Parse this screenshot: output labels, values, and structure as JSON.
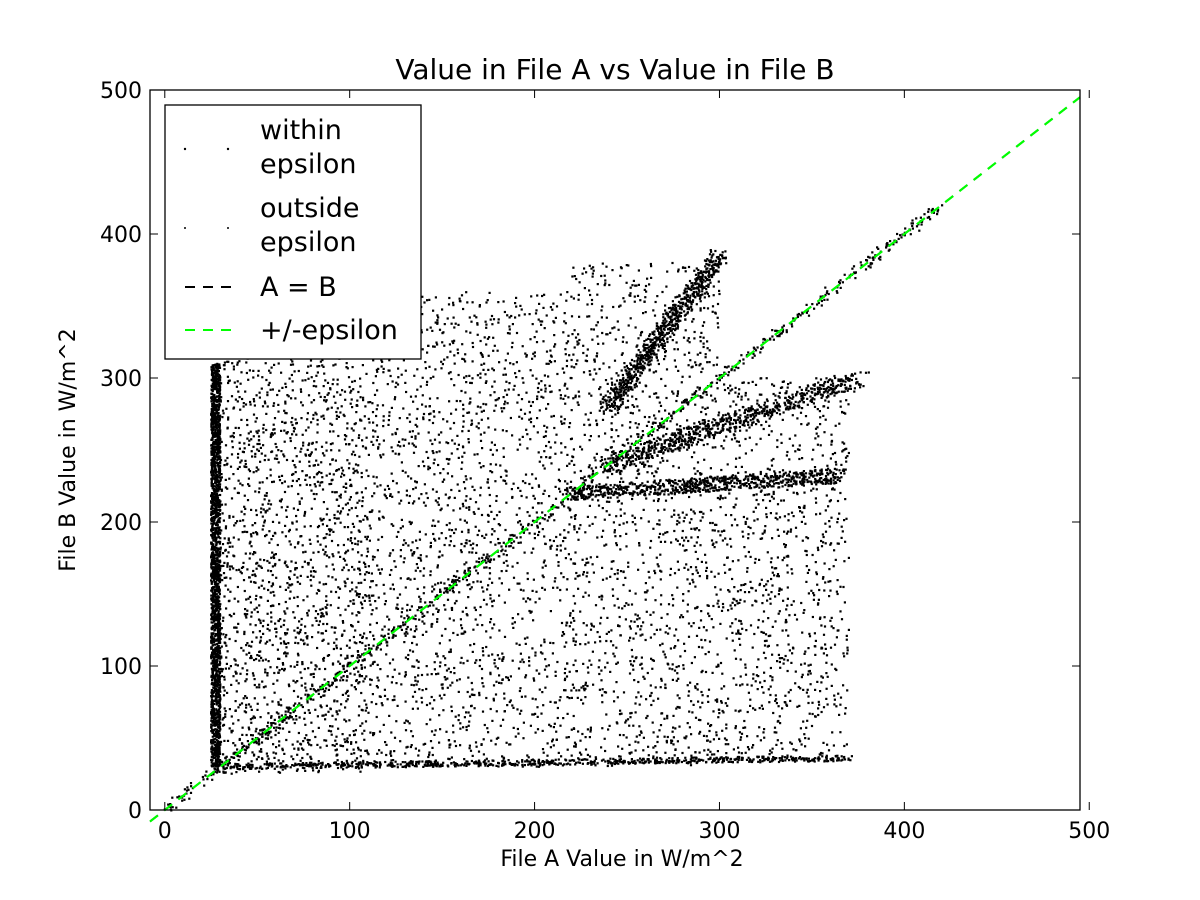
{
  "chart_data": {
    "type": "scatter",
    "title": "Value in File A vs Value in File B",
    "xlabel": "File A Value in W/m^2",
    "ylabel": "File B Value in W/m^2",
    "xlim": [
      -8,
      495
    ],
    "ylim": [
      0,
      500
    ],
    "xticks": [
      0,
      100,
      200,
      300,
      400,
      500
    ],
    "yticks": [
      0,
      100,
      200,
      300,
      400,
      500
    ],
    "xtick_labels": [
      "0",
      "100",
      "200",
      "300",
      "400",
      "500"
    ],
    "ytick_labels": [
      "0",
      "100",
      "200",
      "300",
      "400",
      "500"
    ],
    "grid": false,
    "legend_position": "upper-left",
    "legend": [
      {
        "label_lines": [
          "within",
          "epsilon"
        ],
        "marker": "dot",
        "color": "#000000"
      },
      {
        "label_lines": [
          "outside",
          "epsilon"
        ],
        "marker": "dot",
        "color": "#000000"
      },
      {
        "label_lines": [
          "A = B"
        ],
        "marker": "dashed-line",
        "color": "#000000"
      },
      {
        "label_lines": [
          "+/-epsilon"
        ],
        "marker": "dashed-line",
        "color": "#00ff00"
      }
    ],
    "series": [
      {
        "name": "within epsilon",
        "kind": "points",
        "color": "#000000",
        "clusters": [
          {
            "x": [
              25,
              30
            ],
            "y": [
              30,
              310
            ],
            "density": 0.9
          },
          {
            "x": [
              30,
              110
            ],
            "y": [
              25,
              340
            ],
            "density": 0.85
          },
          {
            "x": [
              110,
              220
            ],
            "y": [
              30,
              360
            ],
            "density": 0.8
          },
          {
            "x": [
              220,
              300
            ],
            "y": [
              30,
              380
            ],
            "density": 0.6
          },
          {
            "x": [
              300,
              370
            ],
            "y": [
              35,
              300
            ],
            "density": 0.4
          }
        ],
        "bands": [
          {
            "from": [
              0,
              0
            ],
            "to": [
              420,
              420
            ],
            "width": 6
          },
          {
            "from": [
              240,
              280
            ],
            "to": [
              300,
              385
            ],
            "width": 10
          },
          {
            "from": [
              240,
              240
            ],
            "to": [
              375,
              300
            ],
            "width": 12
          },
          {
            "from": [
              220,
              220
            ],
            "to": [
              365,
              232
            ],
            "width": 10
          },
          {
            "from": [
              30,
              30
            ],
            "to": [
              370,
              36
            ],
            "width": 4
          }
        ]
      },
      {
        "name": "outside epsilon",
        "kind": "points",
        "color": "#000000"
      },
      {
        "name": "A = B",
        "kind": "line",
        "style": "dashed",
        "color": "#000000",
        "x": [
          -8,
          495
        ],
        "y": [
          -8,
          495
        ]
      },
      {
        "name": "+/-epsilon",
        "kind": "line",
        "style": "dashed",
        "color": "#00ff00",
        "x": [
          -8,
          495
        ],
        "y": [
          -8,
          495
        ]
      }
    ]
  }
}
